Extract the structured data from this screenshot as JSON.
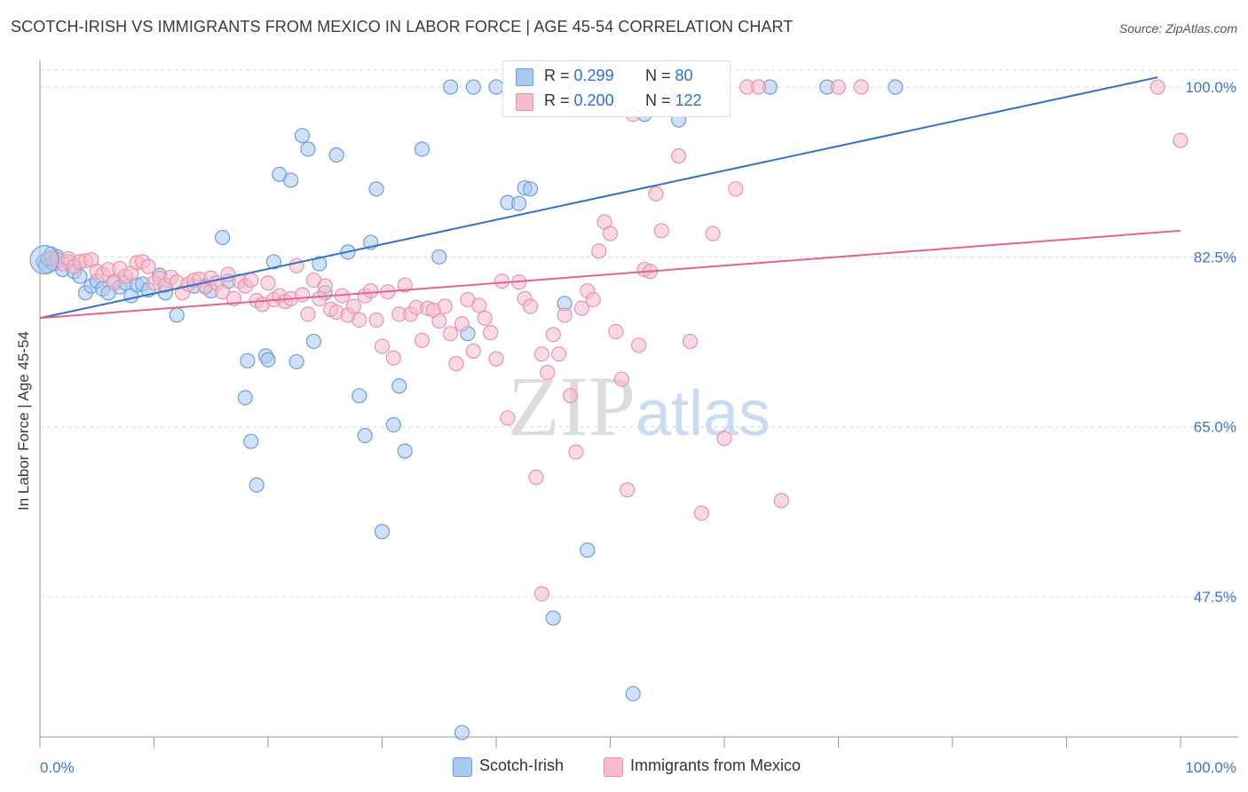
{
  "title": "SCOTCH-IRISH VS IMMIGRANTS FROM MEXICO IN LABOR FORCE | AGE 45-54 CORRELATION CHART",
  "source": "Source: ZipAtlas.com",
  "watermark": "ZIPatlas",
  "legend": {
    "series1": {
      "r_label": "R =",
      "r_value": "0.299",
      "n_label": "N =",
      "n_value": "80"
    },
    "series2": {
      "r_label": "R =",
      "r_value": "0.200",
      "n_label": "N =",
      "n_value": "122"
    }
  },
  "colors": {
    "blue_fill": "#a9c8f0",
    "blue_stroke": "#6b9ee0",
    "blue_line": "#2e72d2",
    "pink_fill": "#f6bccb",
    "pink_stroke": "#ec91ab",
    "pink_line": "#e2648f",
    "axis_text": "#3b74d6",
    "grid": "#d9d9d9"
  },
  "chart_data": {
    "type": "scatter",
    "title": "SCOTCH-IRISH VS IMMIGRANTS FROM MEXICO IN LABOR FORCE | AGE 45-54 CORRELATION CHART",
    "xlabel": "",
    "ylabel": "In Labor Force | Age 45-54",
    "xlim": [
      0,
      100
    ],
    "ylim": [
      31,
      102
    ],
    "x_tick_labels": [
      "0.0%",
      "100.0%"
    ],
    "y_ticks": [
      47.5,
      65.0,
      82.5,
      100.0
    ],
    "y_tick_labels": [
      "47.5%",
      "65.0%",
      "82.5%",
      "100.0%"
    ],
    "grid": "horizontal dashed",
    "legend_position": "bottom",
    "series": [
      {
        "name": "Scotch-Irish",
        "r": 0.299,
        "n": 80,
        "trend": [
          [
            0,
            76.2
          ],
          [
            98,
            101.0
          ]
        ],
        "points": [
          [
            0.3,
            82.0
          ],
          [
            0.5,
            81.6
          ],
          [
            0.7,
            82.3
          ],
          [
            1.0,
            82.8
          ],
          [
            1.2,
            81.8
          ],
          [
            1.5,
            82.5
          ],
          [
            2.0,
            81.2
          ],
          [
            2.5,
            82.0
          ],
          [
            3.0,
            81.0
          ],
          [
            3.5,
            80.5
          ],
          [
            4.0,
            78.8
          ],
          [
            4.5,
            79.5
          ],
          [
            5.0,
            80.0
          ],
          [
            5.5,
            79.2
          ],
          [
            6.0,
            78.8
          ],
          [
            6.5,
            80.0
          ],
          [
            7.0,
            79.4
          ],
          [
            7.5,
            79.8
          ],
          [
            8.0,
            78.5
          ],
          [
            8.5,
            79.6
          ],
          [
            9.0,
            79.7
          ],
          [
            9.5,
            79.1
          ],
          [
            10.5,
            80.6
          ],
          [
            11.0,
            78.8
          ],
          [
            12.0,
            76.5
          ],
          [
            13.5,
            79.5
          ],
          [
            14.5,
            79.5
          ],
          [
            15.0,
            79.0
          ],
          [
            16.0,
            84.5
          ],
          [
            16.5,
            80.0
          ],
          [
            18.0,
            68.0
          ],
          [
            18.2,
            71.8
          ],
          [
            18.5,
            63.5
          ],
          [
            19.0,
            59.0
          ],
          [
            19.8,
            72.3
          ],
          [
            20.0,
            71.9
          ],
          [
            20.5,
            82.0
          ],
          [
            21.0,
            91.0
          ],
          [
            22.0,
            90.4
          ],
          [
            22.5,
            71.7
          ],
          [
            23.0,
            95.0
          ],
          [
            23.5,
            93.6
          ],
          [
            24.0,
            73.8
          ],
          [
            24.5,
            81.8
          ],
          [
            25.0,
            78.8
          ],
          [
            26.0,
            93.0
          ],
          [
            27.0,
            83.0
          ],
          [
            28.0,
            68.2
          ],
          [
            28.5,
            64.1
          ],
          [
            29.0,
            84.0
          ],
          [
            29.5,
            89.5
          ],
          [
            30.0,
            54.2
          ],
          [
            31.0,
            65.2
          ],
          [
            31.5,
            69.2
          ],
          [
            32.0,
            62.5
          ],
          [
            33.5,
            93.6
          ],
          [
            35.0,
            82.5
          ],
          [
            36.0,
            100.0
          ],
          [
            37.0,
            33.5
          ],
          [
            37.5,
            74.6
          ],
          [
            38.0,
            100.0
          ],
          [
            40.0,
            100.0
          ],
          [
            41.0,
            88.1
          ],
          [
            42.0,
            88.0
          ],
          [
            42.5,
            89.6
          ],
          [
            43.0,
            89.5
          ],
          [
            43.5,
            100.0
          ],
          [
            45.0,
            45.3
          ],
          [
            46.0,
            77.7
          ],
          [
            47.0,
            100.0
          ],
          [
            48.0,
            52.3
          ],
          [
            49.0,
            100.0
          ],
          [
            50.0,
            100.0
          ],
          [
            52.0,
            37.5
          ],
          [
            53.0,
            97.2
          ],
          [
            54.0,
            100.0
          ],
          [
            56.0,
            96.6
          ],
          [
            64.0,
            100.0
          ],
          [
            69.0,
            100.0
          ],
          [
            75.0,
            100.0
          ]
        ]
      },
      {
        "name": "Immigrants from Mexico",
        "r": 0.2,
        "n": 122,
        "trend": [
          [
            0,
            76.2
          ],
          [
            100,
            85.2
          ]
        ],
        "points": [
          [
            1.0,
            82.4
          ],
          [
            1.5,
            82.2
          ],
          [
            2.0,
            81.8
          ],
          [
            2.5,
            82.3
          ],
          [
            3.0,
            81.5
          ],
          [
            3.5,
            82.0
          ],
          [
            4.0,
            82.1
          ],
          [
            4.5,
            82.2
          ],
          [
            5.0,
            81.0
          ],
          [
            5.5,
            80.7
          ],
          [
            6.0,
            81.2
          ],
          [
            6.5,
            79.8
          ],
          [
            7.0,
            81.3
          ],
          [
            7.5,
            80.5
          ],
          [
            8.0,
            80.8
          ],
          [
            8.5,
            81.9
          ],
          [
            9.0,
            82.0
          ],
          [
            9.5,
            81.5
          ],
          [
            10.0,
            79.8
          ],
          [
            10.5,
            80.3
          ],
          [
            11.0,
            79.6
          ],
          [
            11.5,
            80.4
          ],
          [
            12.0,
            79.9
          ],
          [
            12.5,
            78.8
          ],
          [
            13.0,
            79.7
          ],
          [
            13.5,
            80.1
          ],
          [
            14.0,
            80.2
          ],
          [
            14.5,
            79.4
          ],
          [
            15.0,
            80.3
          ],
          [
            15.5,
            79.8
          ],
          [
            16.0,
            78.9
          ],
          [
            16.5,
            80.7
          ],
          [
            17.0,
            78.2
          ],
          [
            17.5,
            80.0
          ],
          [
            18.0,
            79.5
          ],
          [
            18.5,
            80.1
          ],
          [
            19.0,
            78.0
          ],
          [
            19.5,
            77.6
          ],
          [
            20.0,
            79.8
          ],
          [
            20.5,
            78.1
          ],
          [
            21.0,
            78.5
          ],
          [
            21.5,
            77.9
          ],
          [
            22.0,
            78.2
          ],
          [
            22.5,
            81.6
          ],
          [
            23.0,
            78.6
          ],
          [
            23.5,
            76.6
          ],
          [
            24.0,
            80.1
          ],
          [
            24.5,
            78.2
          ],
          [
            25.0,
            79.5
          ],
          [
            25.5,
            77.1
          ],
          [
            26.0,
            76.8
          ],
          [
            26.5,
            78.5
          ],
          [
            27.0,
            76.5
          ],
          [
            27.5,
            77.4
          ],
          [
            28.0,
            76.0
          ],
          [
            28.5,
            78.5
          ],
          [
            29.0,
            79.0
          ],
          [
            29.5,
            76.0
          ],
          [
            30.0,
            73.3
          ],
          [
            30.5,
            78.9
          ],
          [
            31.0,
            72.1
          ],
          [
            31.5,
            76.6
          ],
          [
            32.0,
            79.6
          ],
          [
            32.5,
            76.6
          ],
          [
            33.0,
            77.3
          ],
          [
            33.5,
            73.9
          ],
          [
            34.0,
            77.2
          ],
          [
            34.5,
            77.0
          ],
          [
            35.0,
            75.9
          ],
          [
            35.5,
            77.4
          ],
          [
            36.0,
            74.6
          ],
          [
            36.5,
            71.5
          ],
          [
            37.0,
            75.6
          ],
          [
            37.5,
            78.1
          ],
          [
            38.0,
            72.8
          ],
          [
            38.5,
            77.5
          ],
          [
            39.0,
            76.2
          ],
          [
            39.5,
            74.7
          ],
          [
            40.0,
            72.0
          ],
          [
            40.5,
            80.0
          ],
          [
            41.0,
            65.9
          ],
          [
            42.0,
            79.9
          ],
          [
            42.5,
            78.2
          ],
          [
            43.0,
            77.4
          ],
          [
            43.5,
            59.8
          ],
          [
            44.0,
            72.5
          ],
          [
            44.5,
            70.6
          ],
          [
            45.0,
            74.5
          ],
          [
            45.5,
            72.5
          ],
          [
            46.0,
            76.5
          ],
          [
            46.5,
            68.2
          ],
          [
            47.0,
            62.4
          ],
          [
            47.5,
            77.2
          ],
          [
            48.0,
            79.0
          ],
          [
            48.5,
            78.1
          ],
          [
            49.0,
            83.1
          ],
          [
            49.5,
            86.1
          ],
          [
            50.0,
            84.9
          ],
          [
            50.5,
            74.8
          ],
          [
            51.0,
            69.9
          ],
          [
            51.5,
            58.5
          ],
          [
            52.0,
            97.2
          ],
          [
            52.5,
            73.4
          ],
          [
            53.0,
            81.2
          ],
          [
            53.5,
            81.0
          ],
          [
            54.0,
            89.0
          ],
          [
            54.5,
            85.2
          ],
          [
            55.0,
            100.0
          ],
          [
            56.0,
            92.9
          ],
          [
            57.0,
            73.8
          ],
          [
            58.0,
            56.1
          ],
          [
            59.0,
            84.9
          ],
          [
            60.0,
            63.8
          ],
          [
            61.0,
            89.5
          ],
          [
            62.0,
            100.0
          ],
          [
            63.0,
            100.0
          ],
          [
            65.0,
            57.4
          ],
          [
            70.0,
            100.0
          ],
          [
            72.0,
            100.0
          ],
          [
            98.0,
            100.0
          ],
          [
            100.0,
            94.5
          ],
          [
            44.0,
            47.8
          ]
        ]
      }
    ]
  }
}
